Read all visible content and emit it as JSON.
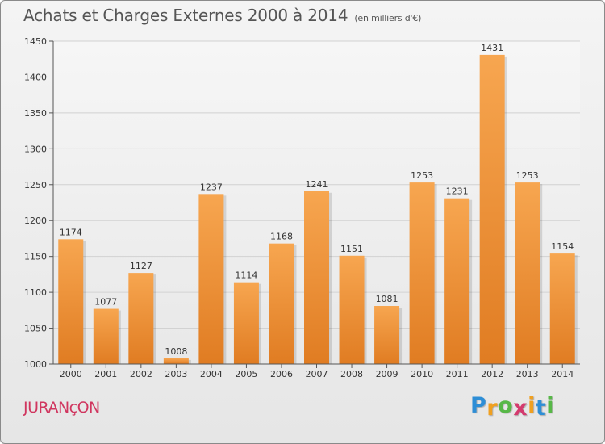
{
  "header": {
    "title": "Achats et Charges Externes 2000 à 2014",
    "subtitle": "(en milliers d'€)"
  },
  "footer": {
    "commune": "JURANçON",
    "brand_letters": [
      "P",
      "r",
      "o",
      "x",
      "i",
      "t",
      "i"
    ],
    "brand_colors": [
      "#2e8ed6",
      "#f0a020",
      "#57b847",
      "#d43a6e",
      "#f0a020",
      "#2e8ed6",
      "#57b847"
    ]
  },
  "colors": {
    "bar_light": "#f7a650",
    "bar_dark": "#e07c22",
    "axis": "#555555",
    "grid": "#d2d2d2",
    "commune": "#d0365f"
  },
  "chart_data": {
    "type": "bar",
    "categories": [
      "2000",
      "2001",
      "2002",
      "2003",
      "2004",
      "2005",
      "2006",
      "2007",
      "2008",
      "2009",
      "2010",
      "2011",
      "2012",
      "2013",
      "2014"
    ],
    "values": [
      1174,
      1077,
      1127,
      1008,
      1237,
      1114,
      1168,
      1241,
      1151,
      1081,
      1253,
      1231,
      1431,
      1253,
      1154
    ],
    "title": "Achats et Charges Externes 2000 à 2014",
    "subtitle": "(en milliers d'€)",
    "xlabel": "",
    "ylabel": "",
    "ylim": [
      1000,
      1450
    ],
    "yticks": [
      1000,
      1050,
      1100,
      1150,
      1200,
      1250,
      1300,
      1350,
      1400,
      1450
    ],
    "grid": true,
    "data_labels": true
  }
}
